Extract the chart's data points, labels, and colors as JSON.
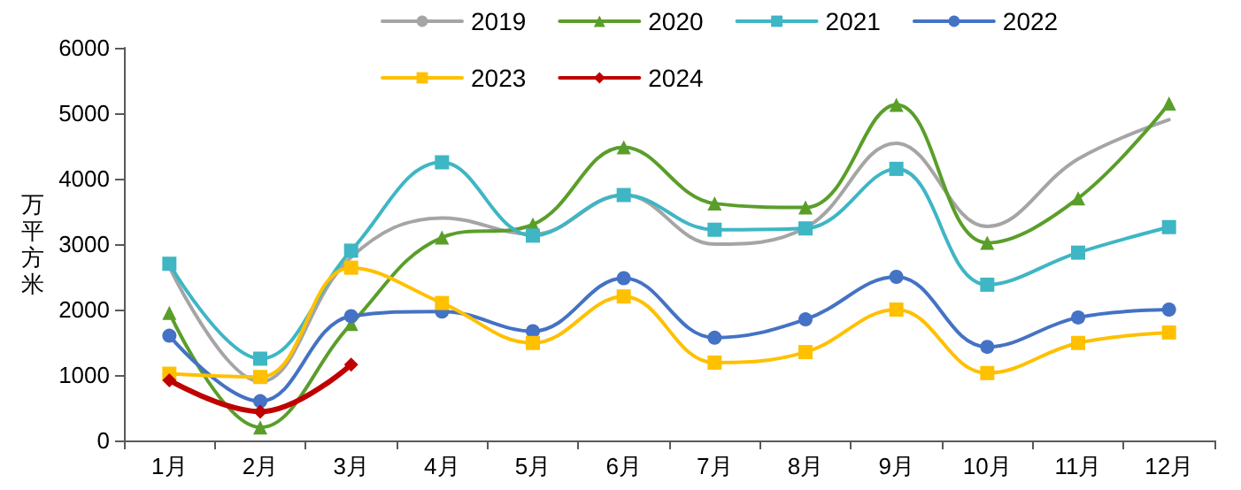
{
  "chart_data": {
    "type": "line",
    "ylabel": "万平方米",
    "categories": [
      "1月",
      "2月",
      "3月",
      "4月",
      "5月",
      "6月",
      "7月",
      "8月",
      "9月",
      "10月",
      "11月",
      "12月"
    ],
    "series": [
      {
        "name": "2019",
        "color": "#a5a5a5",
        "marker": "none",
        "values": [
          2650,
          900,
          2800,
          3400,
          3150,
          3750,
          3000,
          3250,
          4540,
          3270,
          4300,
          4900
        ]
      },
      {
        "name": "2020",
        "color": "#5a9e2a",
        "marker": "triangle",
        "values": [
          1950,
          200,
          1780,
          3100,
          3300,
          4480,
          3620,
          3560,
          5130,
          3020,
          3700,
          5150
        ]
      },
      {
        "name": "2021",
        "color": "#3eb6c4",
        "marker": "square",
        "values": [
          2700,
          1250,
          2900,
          4250,
          3130,
          3750,
          3220,
          3240,
          4150,
          2380,
          2870,
          3260
        ]
      },
      {
        "name": "2022",
        "color": "#4472c4",
        "marker": "circle",
        "values": [
          1600,
          600,
          1900,
          1970,
          1670,
          2480,
          1570,
          1850,
          2500,
          1430,
          1880,
          2000
        ]
      },
      {
        "name": "2023",
        "color": "#ffc000",
        "marker": "square",
        "values": [
          1020,
          970,
          2640,
          2100,
          1490,
          2200,
          1190,
          1350,
          2000,
          1030,
          1490,
          1650
        ]
      },
      {
        "name": "2024",
        "color": "#c00000",
        "marker": "diamond",
        "values": [
          920,
          440,
          1160,
          null,
          null,
          null,
          null,
          null,
          null,
          null,
          null,
          null
        ]
      }
    ],
    "ylim": [
      0,
      6000
    ],
    "yticks": [
      0,
      1000,
      2000,
      3000,
      4000,
      5000,
      6000
    ],
    "grid": false,
    "legend": "top",
    "line_style": "solid"
  }
}
